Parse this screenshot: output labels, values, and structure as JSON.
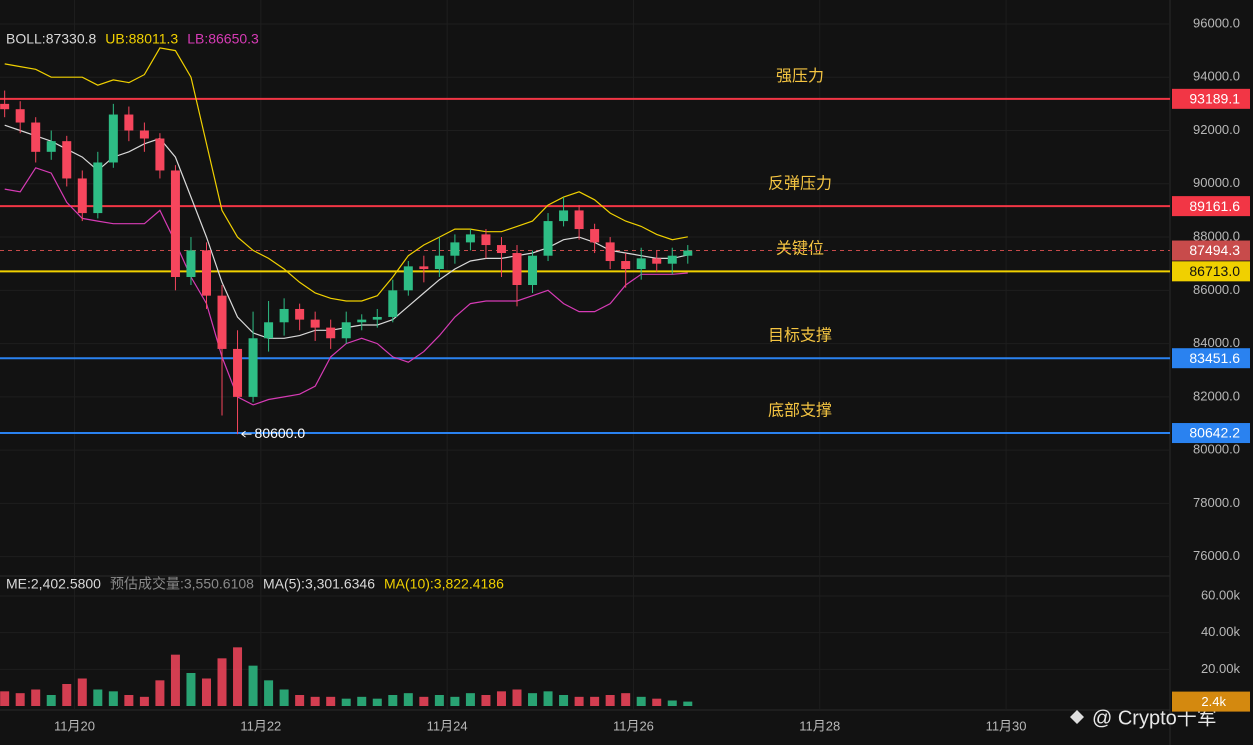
{
  "chart_data": [
    {
      "type": "candlestick",
      "legend": [
        "BOLL:87330.8",
        "UB:88011.3",
        "LB:86650.3"
      ],
      "legend_colors": [
        "#d9d9d9",
        "#f0d000",
        "#d63bb5"
      ],
      "x": [
        19.25,
        19.4167,
        19.5833,
        19.75,
        19.9167,
        20.0833,
        20.25,
        20.4167,
        20.5833,
        20.75,
        20.9167,
        21.0833,
        21.25,
        21.4167,
        21.5833,
        21.75,
        21.9167,
        22.0833,
        22.25,
        22.4167,
        22.5833,
        22.75,
        22.9167,
        23.0833,
        23.25,
        23.4167,
        23.5833,
        23.75,
        23.9167,
        24.0833,
        24.25,
        24.4167,
        24.5833,
        24.75,
        24.9167,
        25.0833,
        25.25,
        25.4167,
        25.5833,
        25.75,
        25.9167,
        26.0833,
        26.25,
        26.4167,
        26.5833
      ],
      "opens": [
        93000,
        92800,
        92300,
        91200,
        91600,
        90200,
        88900,
        90800,
        92600,
        92000,
        91700,
        90500,
        86500,
        87500,
        85800,
        83800,
        82000,
        84200,
        84800,
        85300,
        84900,
        84600,
        84200,
        84800,
        84900,
        85000,
        86000,
        86900,
        86800,
        87300,
        87800,
        88100,
        87700,
        87400,
        86200,
        87300,
        88600,
        89000,
        88300,
        87800,
        87100,
        86800,
        87200,
        87000,
        87300
      ],
      "highs": [
        93500,
        93100,
        92500,
        92000,
        91800,
        90500,
        91200,
        93000,
        92900,
        92300,
        91900,
        90700,
        88000,
        87800,
        86200,
        84500,
        85200,
        85600,
        85700,
        85500,
        85200,
        84900,
        85200,
        85100,
        85300,
        86400,
        87100,
        87300,
        88000,
        88100,
        88300,
        88300,
        88000,
        87700,
        87500,
        88900,
        89500,
        89200,
        88500,
        88000,
        87400,
        87600,
        87500,
        87600,
        87700
      ],
      "lows": [
        92500,
        91900,
        90800,
        90900,
        89900,
        88600,
        88700,
        90600,
        91600,
        91200,
        90200,
        86000,
        86200,
        85300,
        81300,
        80600,
        81800,
        83700,
        84300,
        84500,
        84100,
        83800,
        84000,
        84500,
        84600,
        84800,
        85800,
        86300,
        86500,
        87000,
        87500,
        87200,
        86500,
        85400,
        85900,
        87100,
        88400,
        87900,
        87400,
        86800,
        86100,
        86400,
        86700,
        86600,
        87000
      ],
      "closes": [
        92800,
        92300,
        91200,
        91600,
        90200,
        88900,
        90800,
        92600,
        92000,
        91700,
        90500,
        86500,
        87500,
        85800,
        83800,
        82000,
        84200,
        84800,
        85300,
        84900,
        84600,
        84200,
        84800,
        84900,
        85000,
        86000,
        86900,
        86800,
        87300,
        87800,
        88100,
        87700,
        87400,
        86200,
        87300,
        88600,
        89000,
        88300,
        87800,
        87100,
        86800,
        87200,
        87000,
        87300,
        87494.3
      ],
      "up_color": "#2ebd85",
      "down_color": "#f6465d",
      "bands": [
        {
          "color": "#f0d000",
          "values": [
            94500,
            94400,
            94300,
            94000,
            94000,
            94000,
            93700,
            93900,
            93800,
            94100,
            95100,
            95000,
            94000,
            91500,
            89000,
            88000,
            87500,
            87200,
            86800,
            86300,
            85900,
            85700,
            85600,
            85600,
            85800,
            86500,
            87300,
            87700,
            88000,
            88300,
            88300,
            88200,
            88200,
            88400,
            88600,
            89200,
            89500,
            89700,
            89400,
            88900,
            88600,
            88400,
            88100,
            87900,
            88011.3
          ]
        },
        {
          "color": "#d9d9d9",
          "values": [
            92200,
            92000,
            91800,
            91600,
            91300,
            91000,
            90500,
            91000,
            91200,
            91500,
            91700,
            91000,
            89500,
            88000,
            86300,
            85000,
            84400,
            84200,
            84200,
            84300,
            84500,
            84500,
            84600,
            84700,
            84700,
            84900,
            85400,
            85900,
            86400,
            86800,
            87100,
            87200,
            87200,
            87300,
            87400,
            87600,
            87900,
            88000,
            87800,
            87500,
            87400,
            87300,
            87200,
            87200,
            87330.8
          ]
        },
        {
          "color": "#d63bb5",
          "values": [
            89800,
            89700,
            90600,
            90400,
            89300,
            88700,
            88600,
            88500,
            88500,
            88500,
            89000,
            87800,
            86500,
            85500,
            83500,
            82000,
            81700,
            81900,
            82000,
            82100,
            82400,
            83500,
            84000,
            84200,
            84000,
            83500,
            83300,
            83700,
            84300,
            85000,
            85500,
            85600,
            85600,
            85600,
            85800,
            86000,
            85500,
            85200,
            85200,
            85500,
            86200,
            86600,
            86600,
            86600,
            86650.3
          ]
        }
      ],
      "levels": [
        {
          "name": "强压力",
          "value": 93189.1,
          "color": "#f23645",
          "tag_text": "#ffffff"
        },
        {
          "name": "反弹压力",
          "value": 89161.6,
          "color": "#f23645",
          "tag_text": "#ffffff"
        },
        {
          "name": "关键位",
          "value": 86713,
          "value_label": "86713.0",
          "color": "#f0d000",
          "tag_text": "#111111"
        },
        {
          "name": "目标支撑",
          "value": 83451.6,
          "color": "#2a82f0",
          "tag_text": "#ffffff"
        },
        {
          "name": "底部支撑",
          "value": 80642.2,
          "color": "#2a82f0",
          "tag_text": "#ffffff"
        }
      ],
      "level_name_color": "#f5c542",
      "last_price": {
        "value": 87494.3,
        "color": "#c84b4b"
      },
      "annotation": {
        "x": 21.75,
        "value": 80600,
        "label": "80600.0"
      },
      "xlim": [
        19.2,
        31.76
      ],
      "ylim": [
        75500,
        96900
      ],
      "yticks": [
        {
          "value": 76000,
          "label": "76000.0"
        },
        {
          "value": 78000,
          "label": "78000.0"
        },
        {
          "value": 80000,
          "label": "80000.0"
        },
        {
          "value": 82000,
          "label": "82000.0"
        },
        {
          "value": 84000,
          "label": "84000.0"
        },
        {
          "value": 86000,
          "label": "86000.0"
        },
        {
          "value": 88000,
          "label": "88000.0"
        },
        {
          "value": 90000,
          "label": "90000.0"
        },
        {
          "value": 92000,
          "label": "92000.0"
        },
        {
          "value": 94000,
          "label": "94000.0"
        },
        {
          "value": 96000,
          "label": "96000.0"
        }
      ],
      "grid": true
    },
    {
      "type": "bar",
      "legend": [
        "ME:2,402.5800",
        "预估成交量:3,550.6108",
        "MA(5):3,301.6346",
        "MA(10):3,822.4186"
      ],
      "legend_colors": [
        "#d9d9d9",
        "#8a8a8a",
        "#d9d9d9",
        "#f0d000"
      ],
      "x": [
        19.25,
        19.4167,
        19.5833,
        19.75,
        19.9167,
        20.0833,
        20.25,
        20.4167,
        20.5833,
        20.75,
        20.9167,
        21.0833,
        21.25,
        21.4167,
        21.5833,
        21.75,
        21.9167,
        22.0833,
        22.25,
        22.4167,
        22.5833,
        22.75,
        22.9167,
        23.0833,
        23.25,
        23.4167,
        23.5833,
        23.75,
        23.9167,
        24.0833,
        24.25,
        24.4167,
        24.5833,
        24.75,
        24.9167,
        25.0833,
        25.25,
        25.4167,
        25.5833,
        25.75,
        25.9167,
        26.0833,
        26.25,
        26.4167,
        26.5833
      ],
      "values": [
        8000,
        7000,
        9000,
        6000,
        12000,
        15000,
        9000,
        8000,
        6000,
        5000,
        14000,
        28000,
        18000,
        15000,
        26000,
        32000,
        22000,
        14000,
        9000,
        6000,
        5000,
        5000,
        4000,
        5000,
        4000,
        6000,
        7000,
        5000,
        6000,
        5000,
        7000,
        6000,
        8000,
        9000,
        7000,
        8000,
        6000,
        5000,
        5000,
        6000,
        7000,
        5000,
        4000,
        3000,
        2402.58
      ],
      "last_tag": {
        "value": 2402.58,
        "label": "2.4k",
        "color": "#d4890f"
      },
      "xlim": [
        19.2,
        31.76
      ],
      "ylim": [
        0,
        66000
      ],
      "yticks": [
        {
          "value": 20000,
          "label": "20.00k"
        },
        {
          "value": 40000,
          "label": "40.00k"
        },
        {
          "value": 60000,
          "label": "60.00k"
        }
      ],
      "xticks": [
        {
          "value": 20,
          "label": "11月20"
        },
        {
          "value": 22,
          "label": "11月22"
        },
        {
          "value": 24,
          "label": "11月24"
        },
        {
          "value": 26,
          "label": "11月26"
        },
        {
          "value": 28,
          "label": "11月28"
        },
        {
          "value": 30,
          "label": "11月30"
        }
      ],
      "grid": true
    }
  ],
  "watermark": "@ Crypto千军"
}
